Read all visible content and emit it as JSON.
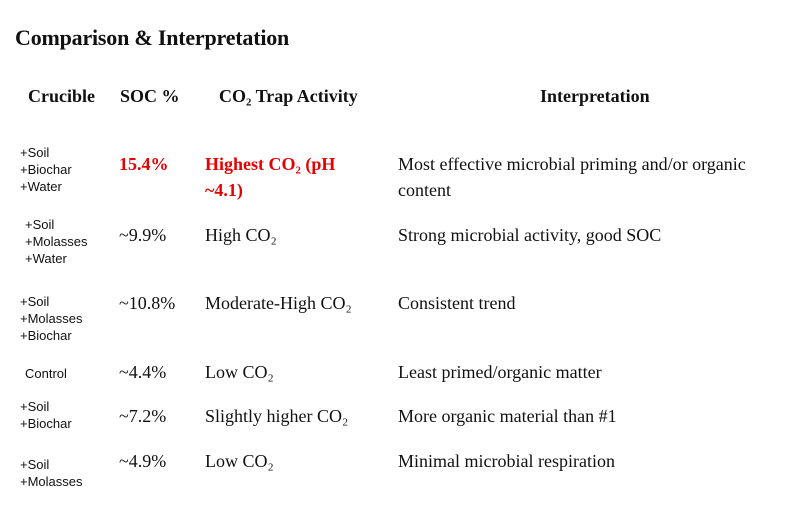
{
  "title": "Comparison & Interpretation",
  "colors": {
    "highlight": "#e60000",
    "text": "#111111"
  },
  "headers": {
    "crucible": "Crucible",
    "soc": "SOC %",
    "co2": "CO₂ Trap Activity",
    "interpretation": "Interpretation"
  },
  "rows": [
    {
      "crucible": [
        "+Soil",
        "+Biochar",
        "+Water"
      ],
      "soc": "15.4%",
      "co2": "Highest CO₂ (pH ~4.1)",
      "interpretation": "Most effective microbial priming and/or organic content",
      "highlighted": true
    },
    {
      "crucible": [
        "+Soil",
        "+Molasses",
        "+Water"
      ],
      "soc": "~9.9%",
      "co2": "High CO₂",
      "interpretation": "Strong microbial activity, good SOC"
    },
    {
      "crucible": [
        "+Soil",
        "+Molasses",
        "+Biochar"
      ],
      "soc": "~10.8%",
      "co2": "Moderate-High CO₂",
      "interpretation": "Consistent trend"
    },
    {
      "crucible": [
        "Control"
      ],
      "soc": "~4.4%",
      "co2": "Low CO₂",
      "interpretation": "Least primed/organic matter"
    },
    {
      "crucible": [
        "+Soil",
        "+Biochar"
      ],
      "soc": "~7.2%",
      "co2": "Slightly higher CO₂",
      "interpretation": "More organic material than #1"
    },
    {
      "crucible": [
        "+Soil",
        "+Molasses"
      ],
      "soc": "~4.9%",
      "co2": "Low CO₂",
      "interpretation": "Minimal microbial respiration"
    }
  ]
}
